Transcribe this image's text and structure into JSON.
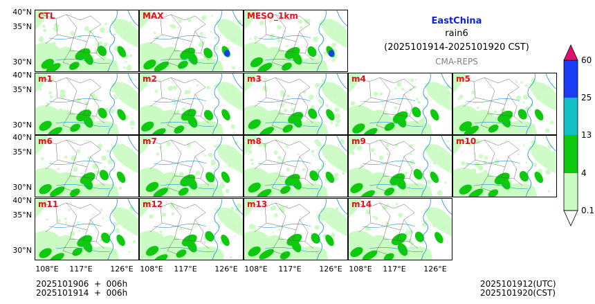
{
  "header": {
    "region": "EastChina",
    "variable": "rain6",
    "period": "(2025101914-2025101920 CST)",
    "system": "CMA-REPS",
    "region_color": "#1020e0"
  },
  "panels": [
    "CTL",
    "MAX",
    "MESO_1km",
    "m1",
    "m2",
    "m3",
    "m4",
    "m5",
    "m6",
    "m7",
    "m8",
    "m9",
    "m10",
    "m11",
    "m12",
    "m13",
    "m14"
  ],
  "axes": {
    "lat_labels": [
      "40°N",
      "35°N",
      "30°N"
    ],
    "lon_labels": [
      "108°E",
      "117°E",
      "126°E"
    ]
  },
  "colorbar": {
    "ticks": [
      "60",
      "25",
      "13",
      "4",
      "0.1"
    ],
    "colors": [
      "#e0106e",
      "#1a3cf5",
      "#12c0c8",
      "#0fc90f",
      "#c9fbc2"
    ]
  },
  "footer": {
    "left_line1": "2025101906  +  006h",
    "left_line2": "2025101914  +  006h",
    "right_line1": "2025101912(UTC)",
    "right_line2": "2025101920(CST)"
  }
}
